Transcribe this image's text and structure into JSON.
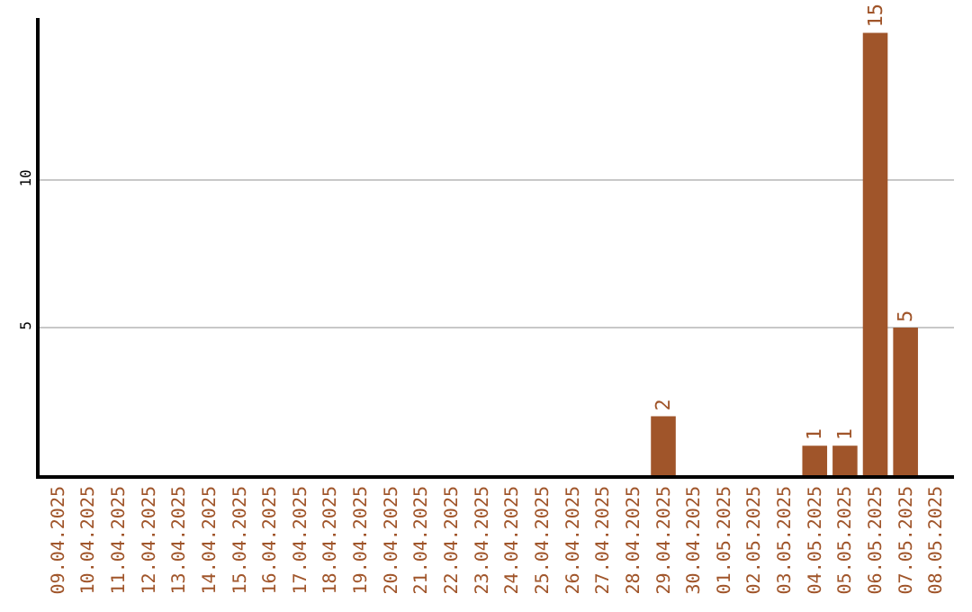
{
  "chart_data": {
    "type": "bar",
    "categories": [
      "09.04.2025",
      "10.04.2025",
      "11.04.2025",
      "12.04.2025",
      "13.04.2025",
      "14.04.2025",
      "15.04.2025",
      "16.04.2025",
      "17.04.2025",
      "18.04.2025",
      "19.04.2025",
      "20.04.2025",
      "21.04.2025",
      "22.04.2025",
      "23.04.2025",
      "24.04.2025",
      "25.04.2025",
      "26.04.2025",
      "27.04.2025",
      "28.04.2025",
      "29.04.2025",
      "30.04.2025",
      "01.05.2025",
      "02.05.2025",
      "03.05.2025",
      "04.05.2025",
      "05.05.2025",
      "06.05.2025",
      "07.05.2025",
      "08.05.2025"
    ],
    "series": [
      {
        "color": "#a0552a",
        "values": [
          0,
          0,
          0,
          0,
          0,
          0,
          0,
          0,
          0,
          0,
          0,
          0,
          0,
          0,
          0,
          0,
          0,
          0,
          0,
          0,
          2,
          0,
          0,
          0,
          0,
          1,
          1,
          15,
          5,
          0
        ],
        "value_labels": [
          null,
          null,
          null,
          null,
          null,
          null,
          null,
          null,
          null,
          null,
          null,
          null,
          null,
          null,
          null,
          null,
          null,
          null,
          null,
          null,
          "2",
          null,
          null,
          null,
          null,
          "1",
          "1",
          "15",
          "5",
          null
        ]
      }
    ],
    "ylim": [
      0,
      15.5
    ],
    "yticks": [
      5,
      10
    ],
    "grid": "y"
  }
}
